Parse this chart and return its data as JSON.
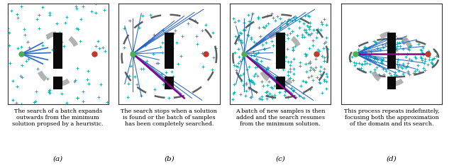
{
  "fig_width": 6.4,
  "fig_height": 2.37,
  "background_color": "#ffffff",
  "panel_captions": [
    "The search of a batch expands\noutwards from the minimum\nsolution propsed by a heuristic.",
    "The search stops when a solution\nis found or the batch of samples\nhas been completely searched.",
    "A batch of new samples is then\nadded and the search resumes\nfrom the minimum solution.",
    "This process repeats indefinitely,\nfocusing both the approximation\nof the domain and its search."
  ],
  "panel_labels": [
    "(a)",
    "(b)",
    "(c)",
    "(d)"
  ],
  "start_color": "#4caf50",
  "goal_color": "#c0392b",
  "line_blue": "#2060c0",
  "line_purple": "#8B008B",
  "obstacle_color": "#0a0a0a",
  "dot_color": "#00b4b4",
  "ellipse_color": "#555555",
  "gray_arc_color": "#aaaaaa",
  "border_color": "#333333"
}
